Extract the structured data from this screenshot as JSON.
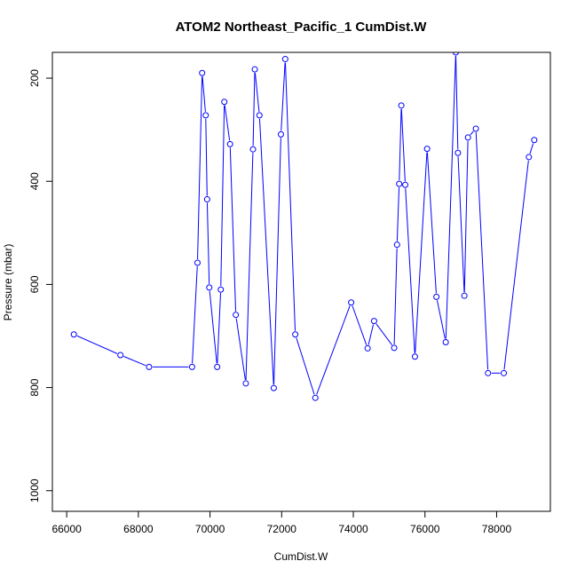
{
  "chart_data": {
    "type": "line",
    "title": "ATOM2 Northeast_Pacific_1 CumDist.W",
    "xlabel": "CumDist.W",
    "ylabel": "Pressure (mbar)",
    "xlim": [
      65600,
      79500
    ],
    "ylim": [
      1040,
      150
    ],
    "y_inverted": true,
    "x_ticks": [
      66000,
      68000,
      70000,
      72000,
      74000,
      76000,
      78000
    ],
    "y_ticks": [
      200,
      400,
      600,
      800,
      1000
    ],
    "grid": false,
    "line_color": "#0000ff",
    "marker": "open-circle",
    "series": [
      {
        "x": [
          66200,
          67500,
          68300,
          69500,
          69650,
          69780,
          69880,
          69920,
          69980,
          70200,
          70300,
          70400,
          70560,
          70720,
          71000,
          71200,
          71250,
          71380,
          71780,
          71980,
          72100,
          72380,
          72940,
          73940,
          74400,
          74580,
          75140,
          75220,
          75280,
          75340,
          75450,
          75720,
          76060,
          76320,
          76580,
          76860,
          76920,
          77100,
          77200,
          77420,
          77760,
          78200,
          78900,
          79050
        ],
        "y": [
          697,
          737,
          760,
          760,
          558,
          190,
          272,
          435,
          606,
          760,
          610,
          246,
          328,
          659,
          792,
          338,
          183,
          272,
          801,
          309,
          163,
          697,
          820,
          635,
          724,
          671,
          723,
          523,
          405,
          253,
          407,
          740,
          337,
          624,
          712,
          150,
          345,
          622,
          315,
          298,
          772,
          772,
          353,
          320
        ]
      }
    ]
  }
}
